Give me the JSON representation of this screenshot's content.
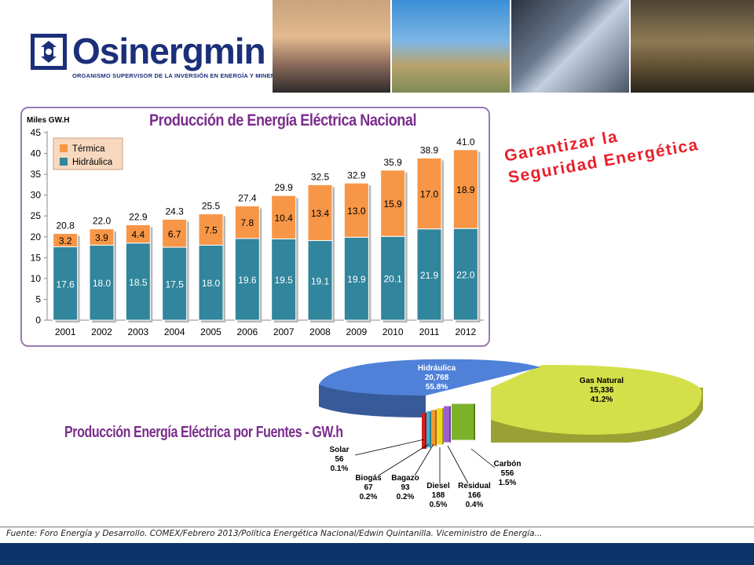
{
  "header": {
    "logo_name": "Osinergmin",
    "logo_subtitle": "ORGANISMO SUPERVISOR DE LA INVERSIÓN EN ENERGÍA Y MINERÍA"
  },
  "slogan": {
    "line1": "Garantizar la",
    "line2": "Seguridad Energética"
  },
  "chart_data": [
    {
      "type": "bar",
      "stacked": true,
      "title": "Producción de Energía Eléctrica Nacional",
      "ylabel": "Miles GW.H",
      "ylim": [
        0,
        45
      ],
      "yticks": [
        0,
        5,
        10,
        15,
        20,
        25,
        30,
        35,
        40,
        45
      ],
      "categories": [
        "2001",
        "2002",
        "2003",
        "2004",
        "2005",
        "2006",
        "2007",
        "2008",
        "2009",
        "2010",
        "2011",
        "2012"
      ],
      "series": [
        {
          "name": "Hidráulica",
          "color": "#31859c",
          "values": [
            17.6,
            18.0,
            18.5,
            17.5,
            18.0,
            19.6,
            19.5,
            19.1,
            19.9,
            20.1,
            21.9,
            22.0
          ],
          "labels": [
            "17.6",
            "18.0",
            "18.5",
            "17.5",
            "18.0",
            "19.6",
            "19.5",
            "19.1",
            "19.9",
            "20.1",
            "21.9",
            "22.0"
          ]
        },
        {
          "name": "Térmica",
          "color": "#f79646",
          "values": [
            3.2,
            3.9,
            4.4,
            6.7,
            7.5,
            7.8,
            10.4,
            13.4,
            13.0,
            15.9,
            17.0,
            18.9
          ],
          "labels": [
            "3.2",
            "3.9",
            "4.4",
            "6.7",
            "7.5",
            "7.8",
            "10.4",
            "13.4",
            "13.0",
            "15.9",
            "17.0",
            "18.9"
          ]
        }
      ],
      "totals": [
        20.8,
        22.0,
        22.9,
        24.3,
        25.5,
        27.4,
        29.9,
        32.5,
        32.9,
        35.9,
        38.9,
        41.0
      ],
      "total_labels": [
        "20.8",
        "22.0",
        "22.9",
        "24.3",
        "25.5",
        "27.4",
        "29.9",
        "32.5",
        "32.9",
        "35.9",
        "38.9",
        "41.0"
      ],
      "legend": [
        "Térmica",
        "Hidráulica"
      ],
      "legend_position": "top-left",
      "grid": false
    },
    {
      "type": "pie",
      "style": "3d-exploded",
      "title": "Producción Energía Eléctrica por Fuentes - GW.h",
      "slices": [
        {
          "name": "Hidráulica",
          "value": 20768,
          "value_label": "20,768",
          "percent": "55.8%",
          "color": "#4f81d9"
        },
        {
          "name": "Gas Natural",
          "value": 15336,
          "value_label": "15,336",
          "percent": "41.2%",
          "color": "#d4e04a"
        },
        {
          "name": "Carbón",
          "value": 556,
          "value_label": "556",
          "percent": "1.5%",
          "color": "#7cb22a"
        },
        {
          "name": "Residual",
          "value": 166,
          "value_label": "166",
          "percent": "0.4%",
          "color": "#9b5fd0"
        },
        {
          "name": "Diesel",
          "value": 188,
          "value_label": "188",
          "percent": "0.5%",
          "color": "#f0d820"
        },
        {
          "name": "Bagazo",
          "value": 93,
          "value_label": "93",
          "percent": "0.2%",
          "color": "#f29a2e"
        },
        {
          "name": "Biogás",
          "value": 67,
          "value_label": "67",
          "percent": "0.2%",
          "color": "#3bb0d0"
        },
        {
          "name": "Solar",
          "value": 56,
          "value_label": "56",
          "percent": "0.1%",
          "color": "#d42020"
        }
      ]
    }
  ],
  "footer": {
    "source": "Fuente: Foro Energía y Desarrollo. COMEX/Febrero 2013/Política Energética Nacional/Edwin Quintanilla. Viceministro de Energía..."
  }
}
